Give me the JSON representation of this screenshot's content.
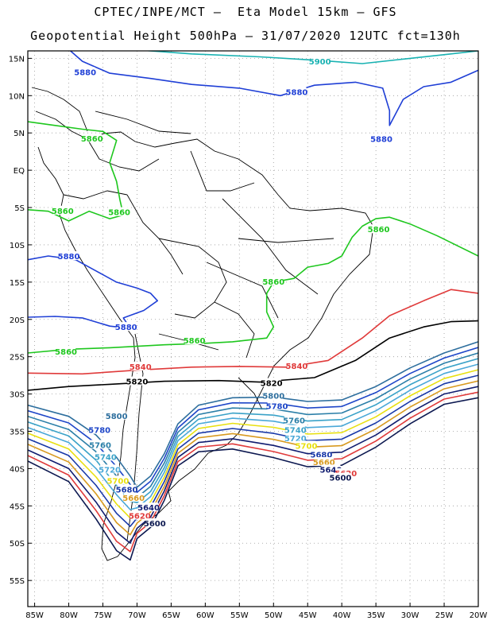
{
  "title": {
    "line1": "CPTEC/INPE/MCT –  Eta Model 15km – GFS",
    "line2": "Geopotential Height 500hPa – 31/07/2020 12UTC fct=130h"
  },
  "axes": {
    "lat_labels": [
      "15N",
      "10N",
      "5N",
      "EQ",
      "5S",
      "10S",
      "15S",
      "20S",
      "25S",
      "30S",
      "35S",
      "40S",
      "45S",
      "50S",
      "55S"
    ],
    "lon_labels": [
      "85W",
      "80W",
      "75W",
      "70W",
      "65W",
      "60W",
      "55W",
      "50W",
      "45W",
      "40W",
      "35W",
      "30W",
      "25W",
      "20W"
    ],
    "lat_range": [
      16.0,
      -58.5
    ],
    "lon_range": [
      -86.0,
      -20.0
    ],
    "grid": "dotted"
  },
  "contours": [
    {
      "value": "5900",
      "color": "#19b2b2",
      "labels": [
        {
          "lon": -43.2,
          "lat": 14.6
        }
      ]
    },
    {
      "value": "5880",
      "color": "#1f3fd6",
      "labels": [
        {
          "lon": -77.6,
          "lat": 13.2
        },
        {
          "lon": -46.6,
          "lat": 10.5
        },
        {
          "lon": -34.2,
          "lat": 4.2
        },
        {
          "lon": -80.0,
          "lat": -11.5
        },
        {
          "lon": -71.6,
          "lat": -21.0
        }
      ]
    },
    {
      "value": "5860",
      "color": "#1ec71e",
      "labels": [
        {
          "lon": -76.6,
          "lat": 4.3
        },
        {
          "lon": -80.9,
          "lat": -5.4
        },
        {
          "lon": -72.6,
          "lat": -5.6
        },
        {
          "lon": -34.6,
          "lat": -7.9
        },
        {
          "lon": -50.0,
          "lat": -14.9
        },
        {
          "lon": -61.6,
          "lat": -22.8
        },
        {
          "lon": -80.4,
          "lat": -24.3
        }
      ]
    },
    {
      "value": "5840",
      "color": "#e03a3a",
      "labels": [
        {
          "lon": -69.5,
          "lat": -26.3
        },
        {
          "lon": -46.6,
          "lat": -26.2
        }
      ]
    },
    {
      "value": "5820",
      "color": "#000000",
      "labels": [
        {
          "lon": -70.0,
          "lat": -28.3
        },
        {
          "lon": -50.3,
          "lat": -28.5
        }
      ]
    },
    {
      "value": "5800",
      "color": "#2e6f9e",
      "labels": [
        {
          "lon": -73.0,
          "lat": -32.9
        },
        {
          "lon": -50.0,
          "lat": -30.2
        }
      ]
    },
    {
      "value": "5780",
      "color": "#1e46c8",
      "labels": [
        {
          "lon": -75.5,
          "lat": -34.8
        },
        {
          "lon": -49.5,
          "lat": -31.6
        }
      ]
    },
    {
      "value": "5760",
      "color": "#2b7fa8",
      "labels": [
        {
          "lon": -75.4,
          "lat": -36.8
        },
        {
          "lon": -47.0,
          "lat": -33.5
        }
      ]
    },
    {
      "value": "5740",
      "color": "#3aa2c8",
      "labels": [
        {
          "lon": -74.6,
          "lat": -38.4
        },
        {
          "lon": -46.8,
          "lat": -34.8
        }
      ]
    },
    {
      "value": "5720",
      "color": "#4aa8d8",
      "labels": [
        {
          "lon": -74.0,
          "lat": -40.1
        },
        {
          "lon": -46.8,
          "lat": -35.9
        }
      ]
    },
    {
      "value": "5700",
      "color": "#e8e010",
      "labels": [
        {
          "lon": -72.8,
          "lat": -41.6
        },
        {
          "lon": -45.2,
          "lat": -36.9
        }
      ]
    },
    {
      "value": "5680",
      "color": "#1838a8",
      "labels": [
        {
          "lon": -71.5,
          "lat": -42.8
        },
        {
          "lon": -43.0,
          "lat": -38.1
        }
      ]
    },
    {
      "value": "5660",
      "color": "#d89a20",
      "labels": [
        {
          "lon": -70.5,
          "lat": -43.9
        },
        {
          "lon": -42.6,
          "lat": -39.1
        }
      ]
    },
    {
      "value": "5640",
      "color": "#101c70",
      "labels": [
        {
          "lon": -68.3,
          "lat": -45.2
        },
        {
          "lon": -41.6,
          "lat": -40.1
        }
      ]
    },
    {
      "value": "5620",
      "color": "#e03a3a",
      "labels": [
        {
          "lon": -69.6,
          "lat": -46.3
        },
        {
          "lon": -39.4,
          "lat": -40.6
        }
      ]
    },
    {
      "value": "5600",
      "color": "#0c1850",
      "labels": [
        {
          "lon": -67.4,
          "lat": -47.3
        },
        {
          "lon": -40.2,
          "lat": -41.2
        }
      ]
    }
  ]
}
